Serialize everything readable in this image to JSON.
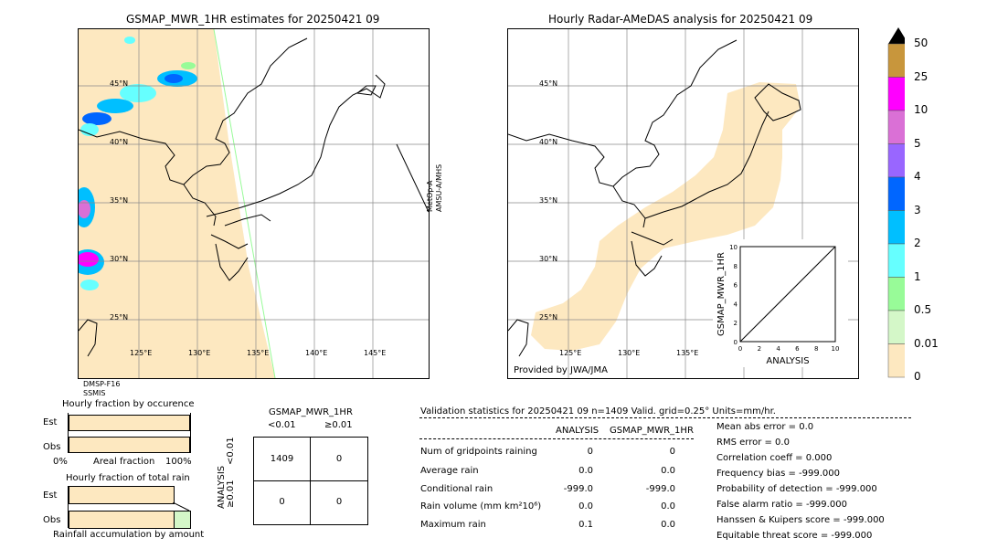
{
  "left_map": {
    "title": "GSMAP_MWR_1HR estimates for 20250421 09",
    "lat_labels": [
      "45°N",
      "40°N",
      "35°N",
      "30°N",
      "25°N"
    ],
    "lon_labels": [
      "125°E",
      "130°E",
      "135°E",
      "140°E",
      "145°E"
    ],
    "side_label_1": "MetOp-A",
    "side_label_2": "AMSU-A/MHS",
    "bottom_label_1": "DMSP-F16",
    "bottom_label_2": "SSMIS"
  },
  "right_map": {
    "title": "Hourly Radar-AMeDAS analysis for 20250421 09",
    "lat_labels": [
      "45°N",
      "40°N",
      "35°N",
      "30°N",
      "25°N"
    ],
    "lon_labels": [
      "125°E",
      "130°E",
      "135°E"
    ],
    "credit": "Provided by JWA/JMA"
  },
  "colorbar": {
    "labels": [
      "50",
      "25",
      "10",
      "5",
      "4",
      "3",
      "2",
      "1",
      "0.5",
      "0.01",
      "0"
    ],
    "colors": [
      "#c8963c",
      "#ff00ff",
      "#da70d6",
      "#9966ff",
      "#0066ff",
      "#00bfff",
      "#66ffff",
      "#98fb98",
      "#d4f7c8",
      "#fde8c0"
    ]
  },
  "fraction_occurrence": {
    "title": "Hourly fraction by occurence",
    "rows": [
      "Est",
      "Obs"
    ],
    "axis_left": "0%",
    "axis_mid": "Areal fraction",
    "axis_right": "100%"
  },
  "fraction_rain": {
    "title": "Hourly fraction of total rain",
    "rows": [
      "Est",
      "Obs"
    ],
    "footer": "Rainfall accumulation by amount"
  },
  "contingency": {
    "title": "GSMAP_MWR_1HR",
    "col_labels": [
      "<0.01",
      "≥0.01"
    ],
    "row_axis": "ANALYSIS",
    "row_labels": [
      "<0.01",
      "≥0.01"
    ],
    "cells": [
      "1409",
      "0",
      "0",
      "0"
    ]
  },
  "validation": {
    "header": "Validation statistics for 20250421 09  n=1409 Valid. grid=0.25°  Units=mm/hr.",
    "col_analysis": "ANALYSIS",
    "col_gsmap": "GSMAP_MWR_1HR",
    "rows": [
      {
        "label": "Num of gridpoints raining",
        "analysis": "0",
        "gsmap": "0"
      },
      {
        "label": "Average rain",
        "analysis": "0.0",
        "gsmap": "0.0"
      },
      {
        "label": "Conditional rain",
        "analysis": "-999.0",
        "gsmap": "-999.0"
      },
      {
        "label": "Rain volume (mm km²10⁶)",
        "analysis": "0.0",
        "gsmap": "0.0"
      },
      {
        "label": "Maximum rain",
        "analysis": "0.1",
        "gsmap": "0.0"
      }
    ],
    "scores": [
      "Mean abs error =    0.0",
      "RMS error =    0.0",
      "Correlation coeff =  0.000",
      "Frequency bias = -999.000",
      "Probability of detection = -999.000",
      "False alarm ratio = -999.000",
      "Hanssen & Kuipers score = -999.000",
      "Equitable threat score = -999.000"
    ]
  },
  "chart_data": {
    "type": "scatter",
    "title": "",
    "xlabel": "ANALYSIS",
    "ylabel": "GSMAP_MWR_1HR",
    "xlim": [
      0,
      10
    ],
    "ylim": [
      0,
      10
    ],
    "ticks": [
      "0",
      "2",
      "4",
      "6",
      "8",
      "10"
    ],
    "reference_line": {
      "x": [
        0,
        10
      ],
      "y": [
        0,
        10
      ]
    },
    "points": []
  }
}
